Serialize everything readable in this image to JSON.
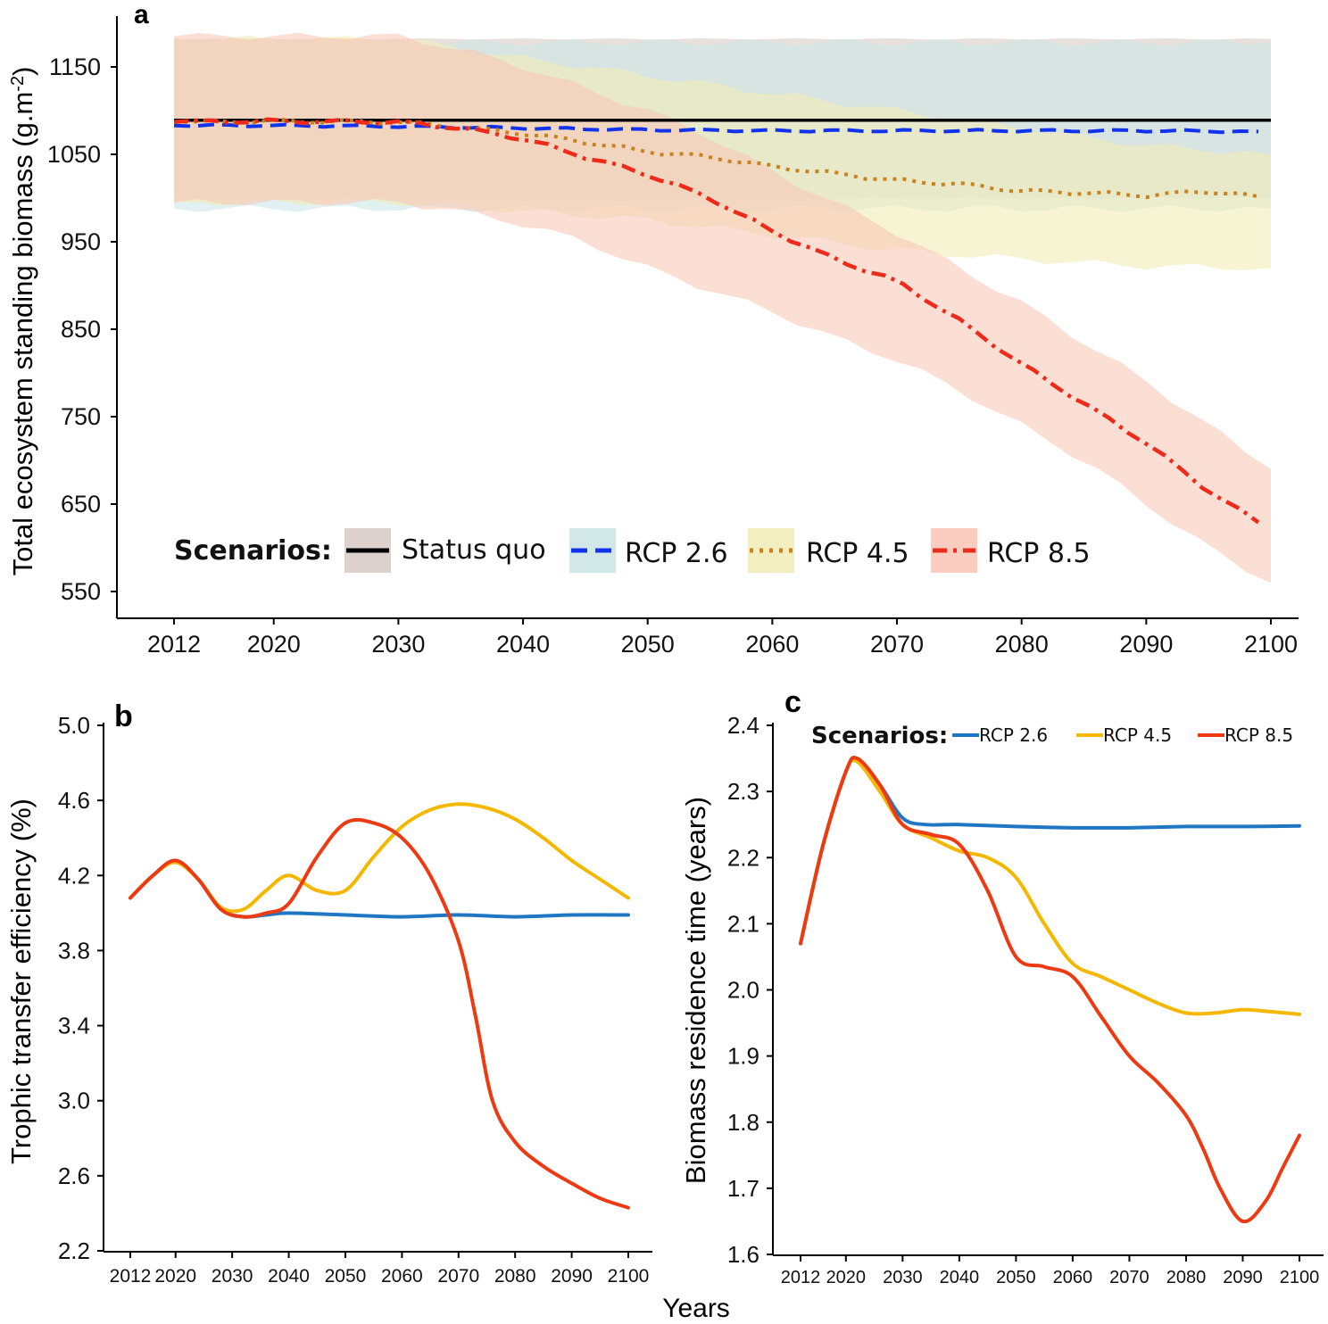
{
  "xlabel_shared": "Years",
  "chart_data": [
    {
      "panel": "a",
      "type": "line",
      "ylabel": "Total ecosystem standing biomass (g.m",
      "ylabel_sup": "-2",
      "ylabel_close": ")",
      "ylim": [
        550,
        1180
      ],
      "xlim": [
        2012,
        2100
      ],
      "yticks": [
        550,
        650,
        750,
        850,
        950,
        1050,
        1150
      ],
      "xticks": [
        2012,
        2020,
        2030,
        2040,
        2050,
        2060,
        2070,
        2080,
        2090,
        2100
      ],
      "legend": {
        "title": "Scenarios:",
        "placement": "bottom-left"
      },
      "series": [
        {
          "name": "Status quo",
          "color": "#000000",
          "dash": "solid",
          "band_color": "#d8ccc6",
          "x": [
            2012,
            2100
          ],
          "values": [
            1089,
            1089
          ],
          "band_x": [
            2012,
            2030,
            2040,
            2050,
            2060,
            2070,
            2080,
            2090,
            2100
          ],
          "band_lo": [
            1000,
            1000,
            1000,
            1000,
            1000,
            1000,
            1000,
            1000,
            1000
          ],
          "band_hi": [
            1182,
            1182,
            1182,
            1182,
            1182,
            1182,
            1182,
            1182,
            1182
          ]
        },
        {
          "name": "RCP 2.6",
          "color": "#1133ee",
          "dash": "dash",
          "band_color": "#cde6e6",
          "x": [
            2012,
            2020,
            2030,
            2040,
            2050,
            2060,
            2070,
            2080,
            2090,
            2100
          ],
          "values": [
            1083,
            1083,
            1082,
            1080,
            1078,
            1077,
            1077,
            1077,
            1077,
            1076
          ],
          "band_x": [
            2012,
            2030,
            2040,
            2050,
            2060,
            2070,
            2080,
            2090,
            2100
          ],
          "band_lo": [
            988,
            988,
            988,
            988,
            988,
            988,
            988,
            988,
            988
          ],
          "band_hi": [
            1178,
            1178,
            1178,
            1178,
            1178,
            1178,
            1178,
            1178,
            1178
          ]
        },
        {
          "name": "RCP 4.5",
          "color": "#c8821e",
          "dash": "dot",
          "band_color": "#f2ecb8",
          "x": [
            2012,
            2020,
            2030,
            2035,
            2040,
            2045,
            2050,
            2055,
            2060,
            2065,
            2070,
            2075,
            2080,
            2085,
            2090,
            2095,
            2100
          ],
          "values": [
            1087,
            1088,
            1087,
            1081,
            1074,
            1064,
            1053,
            1047,
            1036,
            1028,
            1020,
            1016,
            1008,
            1006,
            1003,
            1008,
            1000
          ],
          "band_x": [
            2012,
            2030,
            2040,
            2050,
            2060,
            2070,
            2080,
            2090,
            2100
          ],
          "band_lo": [
            995,
            995,
            985,
            975,
            958,
            940,
            930,
            922,
            920
          ],
          "band_hi": [
            1182,
            1182,
            1160,
            1140,
            1120,
            1100,
            1080,
            1060,
            1050
          ]
        },
        {
          "name": "RCP 8.5",
          "color": "#ee2a1a",
          "dash": "dashdot",
          "band_color": "#f8c8b8",
          "x": [
            2012,
            2020,
            2030,
            2035,
            2040,
            2045,
            2050,
            2055,
            2060,
            2065,
            2070,
            2075,
            2080,
            2085,
            2090,
            2095,
            2100
          ],
          "values": [
            1087,
            1088,
            1087,
            1080,
            1068,
            1047,
            1027,
            1000,
            962,
            930,
            905,
            860,
            810,
            765,
            720,
            665,
            620
          ],
          "band_x": [
            2012,
            2030,
            2035,
            2040,
            2045,
            2050,
            2055,
            2060,
            2065,
            2070,
            2075,
            2080,
            2085,
            2090,
            2095,
            2100
          ],
          "band_lo": [
            995,
            995,
            985,
            970,
            950,
            920,
            895,
            870,
            840,
            815,
            780,
            740,
            700,
            650,
            600,
            560
          ],
          "band_hi": [
            1185,
            1185,
            1170,
            1150,
            1125,
            1100,
            1070,
            1030,
            995,
            960,
            920,
            880,
            835,
            790,
            740,
            690
          ]
        }
      ]
    },
    {
      "panel": "b",
      "type": "line",
      "ylabel": "Trophic transfer efficiency (%)",
      "ylim": [
        2.2,
        5.0
      ],
      "xlim": [
        2012,
        2100
      ],
      "yticks": [
        2.2,
        2.6,
        3.0,
        3.4,
        3.8,
        4.2,
        4.6,
        5.0
      ],
      "ytick_labels": [
        "2.2",
        "2.6",
        "3.0",
        "3.4",
        "3.8",
        "4.2",
        "4.6",
        "5.0"
      ],
      "xticks": [
        2012,
        2020,
        2030,
        2040,
        2050,
        2060,
        2070,
        2080,
        2090,
        2100
      ],
      "series": [
        {
          "name": "RCP 2.6",
          "color": "#1f77c4",
          "x": [
            2012,
            2016,
            2020,
            2024,
            2028,
            2032,
            2036,
            2040,
            2050,
            2060,
            2070,
            2080,
            2090,
            2100
          ],
          "values": [
            4.08,
            4.2,
            4.28,
            4.18,
            4.02,
            3.98,
            3.99,
            4.0,
            3.99,
            3.98,
            3.99,
            3.98,
            3.99,
            3.99
          ]
        },
        {
          "name": "RCP 4.5",
          "color": "#f5b800",
          "x": [
            2012,
            2016,
            2020,
            2024,
            2028,
            2032,
            2036,
            2040,
            2045,
            2050,
            2055,
            2060,
            2065,
            2070,
            2075,
            2080,
            2085,
            2090,
            2095,
            2100
          ],
          "values": [
            4.08,
            4.2,
            4.27,
            4.18,
            4.03,
            4.02,
            4.12,
            4.2,
            4.12,
            4.12,
            4.3,
            4.46,
            4.55,
            4.58,
            4.56,
            4.5,
            4.4,
            4.28,
            4.18,
            4.08
          ]
        },
        {
          "name": "RCP 8.5",
          "color": "#ee3a12",
          "x": [
            2012,
            2016,
            2020,
            2024,
            2028,
            2032,
            2036,
            2040,
            2045,
            2050,
            2055,
            2060,
            2065,
            2070,
            2073,
            2076,
            2080,
            2085,
            2090,
            2095,
            2100
          ],
          "values": [
            4.08,
            4.2,
            4.28,
            4.18,
            4.02,
            3.98,
            4.0,
            4.05,
            4.3,
            4.48,
            4.48,
            4.4,
            4.2,
            3.85,
            3.45,
            3.0,
            2.78,
            2.65,
            2.56,
            2.48,
            2.43
          ]
        }
      ]
    },
    {
      "panel": "c",
      "type": "line",
      "ylabel": "Biomass residence time (years)",
      "ylim": [
        1.6,
        2.4
      ],
      "xlim": [
        2012,
        2100
      ],
      "yticks": [
        1.6,
        1.7,
        1.8,
        1.9,
        2.0,
        2.1,
        2.2,
        2.3,
        2.4
      ],
      "ytick_labels": [
        "1.6",
        "1.7",
        "1.8",
        "1.9",
        "2.0",
        "2.1",
        "2.2",
        "2.3",
        "2.4"
      ],
      "xticks": [
        2012,
        2020,
        2030,
        2040,
        2050,
        2060,
        2070,
        2080,
        2090,
        2100
      ],
      "legend": {
        "title": "Scenarios:",
        "placement": "top"
      },
      "series": [
        {
          "name": "RCP 2.6",
          "color": "#1f77c4",
          "x": [
            2012,
            2016,
            2020,
            2022,
            2026,
            2030,
            2034,
            2040,
            2050,
            2060,
            2070,
            2080,
            2090,
            2100
          ],
          "values": [
            2.07,
            2.22,
            2.33,
            2.35,
            2.31,
            2.26,
            2.25,
            2.25,
            2.247,
            2.245,
            2.245,
            2.247,
            2.247,
            2.248
          ]
        },
        {
          "name": "RCP 4.5",
          "color": "#f5b800",
          "x": [
            2012,
            2016,
            2020,
            2022,
            2026,
            2030,
            2035,
            2040,
            2045,
            2050,
            2055,
            2060,
            2065,
            2070,
            2075,
            2080,
            2085,
            2090,
            2095,
            2100
          ],
          "values": [
            2.07,
            2.22,
            2.33,
            2.345,
            2.3,
            2.25,
            2.23,
            2.21,
            2.2,
            2.17,
            2.1,
            2.04,
            2.02,
            2.0,
            1.98,
            1.965,
            1.965,
            1.97,
            1.967,
            1.963
          ]
        },
        {
          "name": "RCP 8.5",
          "color": "#ee3a12",
          "x": [
            2012,
            2016,
            2020,
            2022,
            2026,
            2030,
            2035,
            2040,
            2045,
            2050,
            2055,
            2060,
            2065,
            2070,
            2075,
            2080,
            2083,
            2086,
            2090,
            2094,
            2097,
            2100
          ],
          "values": [
            2.07,
            2.22,
            2.33,
            2.35,
            2.31,
            2.25,
            2.235,
            2.22,
            2.15,
            2.05,
            2.035,
            2.02,
            1.96,
            1.9,
            1.86,
            1.81,
            1.76,
            1.7,
            1.65,
            1.68,
            1.73,
            1.78
          ]
        }
      ]
    }
  ]
}
